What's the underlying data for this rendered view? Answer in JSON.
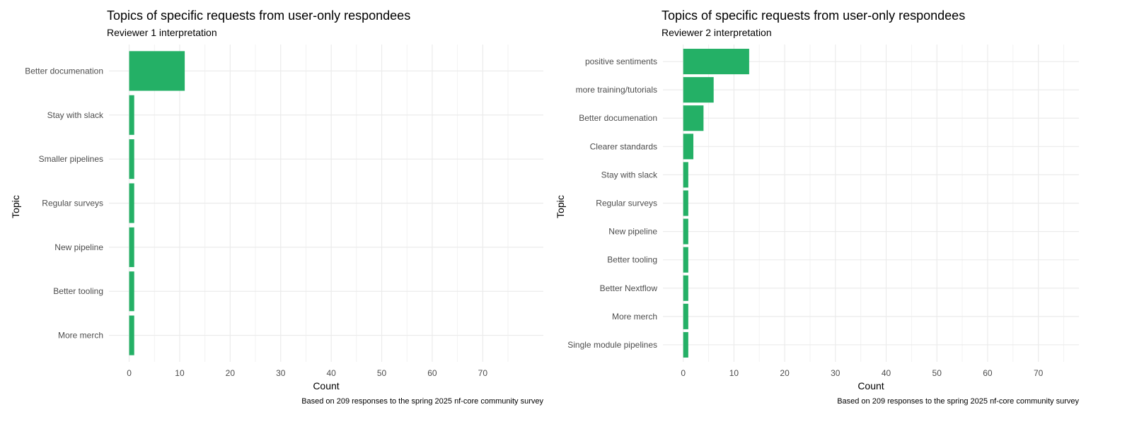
{
  "chart_data": [
    {
      "type": "bar",
      "orientation": "horizontal",
      "title": "Topics of specific requests from user-only respondees",
      "subtitle": "Reviewer 1 interpretation",
      "xlabel": "Count",
      "ylabel": "Topic",
      "caption": "Based on 209 responses to the spring 2025 nf-core community survey",
      "categories": [
        "Better documenation",
        "Stay with slack",
        "Smaller pipelines",
        "Regular surveys",
        "New pipeline",
        "Better tooling",
        "More merch"
      ],
      "values": [
        11,
        1,
        1,
        1,
        1,
        1,
        1
      ],
      "xticks": [
        0,
        10,
        20,
        30,
        40,
        50,
        60,
        70
      ],
      "xlim": [
        -4,
        82
      ],
      "grid": true,
      "bar_color": "#24b066"
    },
    {
      "type": "bar",
      "orientation": "horizontal",
      "title": "Topics of specific requests from user-only respondees",
      "subtitle": "Reviewer 2 interpretation",
      "xlabel": "Count",
      "ylabel": "Topic",
      "caption": "Based on 209 responses to the spring 2025 nf-core community survey",
      "categories": [
        "positive sentiments",
        "more training/tutorials",
        "Better documenation",
        "Clearer standards",
        "Stay with slack",
        "Regular surveys",
        "New pipeline",
        "Better tooling",
        "Better Nextflow",
        "More merch",
        "Single module pipelines"
      ],
      "values": [
        13,
        6,
        4,
        2,
        1,
        1,
        1,
        1,
        1,
        1,
        1
      ],
      "xticks": [
        0,
        10,
        20,
        30,
        40,
        50,
        60,
        70
      ],
      "xlim": [
        -4,
        78
      ],
      "grid": true,
      "bar_color": "#24b066"
    }
  ]
}
